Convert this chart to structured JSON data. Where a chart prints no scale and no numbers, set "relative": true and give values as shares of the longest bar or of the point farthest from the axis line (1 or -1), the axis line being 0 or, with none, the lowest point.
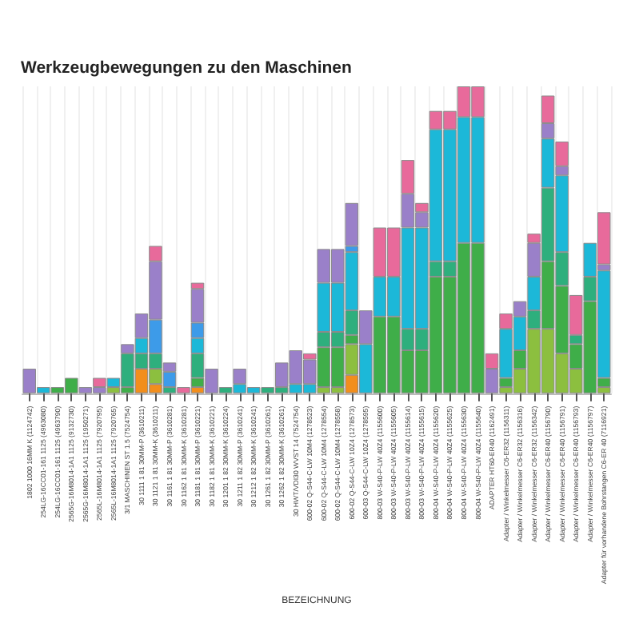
{
  "chart_data": {
    "type": "bar",
    "title": "Werkzeugbewegungen zu den Maschinen",
    "xlabel": "BEZEICHNUNG",
    "relative": true,
    "stacked": true,
    "grid": "x",
    "legend": false,
    "categories": [
      "1802 1000 16MM K (1124742)",
      "254LG-16CC01-161 1125 (4963080)",
      "254LG-16CC01-161 1125 (4963790)",
      "2565G-16M8014-1A1 1125 (9132730)",
      "2565G-16M8014-1A1 1125 (1950271)",
      "2565L-16M8014-1A1 1125 (7920795)",
      "2565L-16M8014-1A1 1125 (7920765)",
      "3/1 MASCHINEN ST 1.5 (7524754)",
      "30 1111 1 81 30MM-P (3610211)",
      "30 1121 1 81 30MM-K (3610211)",
      "30 1161 1 81 30MM-P (3610281)",
      "30 1162 1 81 30MM-K (3610281)",
      "30 1181 1 81 30MM-P (3610221)",
      "30 1182 1 81 30MM-K (3610221)",
      "30 1201 1 82 30MM-K (3610224)",
      "30 1211 1 82 30MM-P (3610241)",
      "30 1212 1 82 30MM-K (3610241)",
      "30 1261 1 82 30MM-P (3610261)",
      "30 1262 1 82 30MM-K (3610261)",
      "30 HWT/VDI30 WVST 14 (7524754)",
      "600-02 Q-S44-C-LW 10M4 (1278523)",
      "600-02 Q-S44-C-LW 10M4 (1278554)",
      "600-02 Q-S44-C-LW 10M4 (1278558)",
      "600-02 Q-S44-C-LW 10Z4 (1278573)",
      "600-03 Q-S44-C-LW 10Z4 (1278595)",
      "800-03 W-S40-P-LW 40Z4 (1155600)",
      "800-03 W-S40-P-LW 40Z4 (1155605)",
      "800-03 W-S40-P-LW 40Z4 (1155614)",
      "800-03 W-S40-P-LW 40Z4 (1155615)",
      "800-04 W-S40-P-LW 40Z4 (1155620)",
      "800-04 W-S40-P-LW 40Z4 (1155625)",
      "800-04 W-S40-P-LW 40Z4 (1155630)",
      "800-04 W-S40-P-LW 40Z4 (1155640)",
      "ADAPTER HT60-ER40 (1162491)",
      "Adapter / Winkelmesser C6-ER32 (1156311)",
      "Adapter / Winkelmesser C6-ER32 (1156316)",
      "Adapter / Winkelmesser C6-ER32 (1156342)",
      "Adapter / Winkelmesser C6-ER40 (1156790)",
      "Adapter / Winkelmesser C6-ER40 (1156791)",
      "Adapter / Winkelmesser C6-ER40 (1156793)",
      "Adapter / Winkelmesser C6-ER40 (1156797)",
      "Adapter für vorhandene Bohrstangen C6-ER 40 (7116921)"
    ],
    "series": [
      {
        "color": "#f28e1c",
        "values": [
          null,
          null,
          null,
          null,
          null,
          null,
          null,
          null,
          0.08,
          0.03,
          null,
          null,
          0.02,
          null,
          null,
          null,
          null,
          null,
          null,
          null,
          null,
          null,
          null,
          0.06,
          null,
          null,
          null,
          null,
          null,
          null,
          null,
          null,
          null,
          null,
          null,
          null,
          null,
          null,
          null,
          null,
          null,
          null
        ]
      },
      {
        "color": "#8cbf3f",
        "values": [
          null,
          null,
          null,
          null,
          null,
          null,
          0.02,
          null,
          null,
          0.05,
          null,
          null,
          null,
          null,
          null,
          null,
          null,
          null,
          null,
          null,
          null,
          0.02,
          0.02,
          0.1,
          null,
          null,
          null,
          null,
          null,
          null,
          null,
          null,
          null,
          null,
          0.02,
          0.08,
          0.21,
          0.21,
          0.13,
          0.08,
          null,
          0.02
        ]
      },
      {
        "color": "#3fae49",
        "values": [
          null,
          null,
          0.02,
          0.05,
          null,
          null,
          null,
          0.02,
          null,
          null,
          null,
          null,
          0.03,
          null,
          null,
          null,
          null,
          null,
          null,
          null,
          null,
          0.13,
          0.13,
          0.03,
          null,
          0.25,
          0.25,
          0.14,
          0.14,
          0.38,
          0.38,
          0.49,
          0.49,
          null,
          0.03,
          0.06,
          null,
          0.22,
          0.22,
          0.08,
          0.3,
          0.03
        ]
      },
      {
        "color": "#2eaf7d",
        "values": [
          null,
          null,
          null,
          null,
          null,
          null,
          null,
          0.11,
          0.05,
          0.05,
          0.02,
          null,
          0.08,
          null,
          0.02,
          null,
          null,
          0.02,
          0.02,
          null,
          null,
          0.05,
          0.05,
          0.08,
          null,
          null,
          null,
          0.07,
          0.07,
          0.05,
          0.05,
          null,
          null,
          null,
          null,
          null,
          0.06,
          0.24,
          0.11,
          0.03,
          0.08,
          null
        ]
      },
      {
        "color": "#1cb8d8",
        "values": [
          null,
          0.02,
          null,
          null,
          null,
          null,
          0.03,
          null,
          0.05,
          null,
          null,
          null,
          0.05,
          null,
          null,
          0.03,
          0.02,
          null,
          null,
          0.03,
          0.03,
          0.16,
          0.16,
          0.19,
          0.16,
          0.13,
          0.13,
          0.33,
          0.33,
          0.43,
          0.43,
          0.41,
          0.41,
          null,
          0.16,
          0.11,
          0.11,
          0.16,
          0.25,
          null,
          0.11,
          0.35
        ]
      },
      {
        "color": "#3d9be9",
        "values": [
          null,
          null,
          null,
          null,
          null,
          null,
          null,
          null,
          null,
          0.11,
          0.05,
          null,
          0.05,
          null,
          null,
          null,
          null,
          null,
          null,
          null,
          null,
          null,
          null,
          0.02,
          null,
          null,
          null,
          null,
          null,
          null,
          null,
          null,
          null,
          null,
          null,
          null,
          null,
          null,
          null,
          null,
          null,
          null
        ]
      },
      {
        "color": "#9a80c9",
        "values": [
          0.08,
          null,
          null,
          null,
          0.02,
          0.02,
          null,
          0.03,
          0.08,
          0.19,
          0.03,
          null,
          0.11,
          0.08,
          null,
          0.05,
          null,
          null,
          0.08,
          0.11,
          0.08,
          0.11,
          0.11,
          0.14,
          0.11,
          null,
          null,
          0.11,
          0.05,
          null,
          null,
          null,
          null,
          0.08,
          null,
          0.05,
          0.11,
          0.05,
          0.03,
          null,
          null,
          0.02
        ]
      },
      {
        "color": "#e86a9b",
        "values": [
          null,
          null,
          null,
          null,
          null,
          0.03,
          null,
          null,
          null,
          0.05,
          null,
          0.02,
          0.02,
          null,
          null,
          null,
          null,
          null,
          null,
          null,
          0.02,
          null,
          null,
          null,
          null,
          0.16,
          0.16,
          0.11,
          0.03,
          0.06,
          0.06,
          0.1,
          0.1,
          0.05,
          0.05,
          null,
          0.03,
          0.09,
          0.08,
          0.13,
          null,
          0.17
        ]
      }
    ]
  }
}
